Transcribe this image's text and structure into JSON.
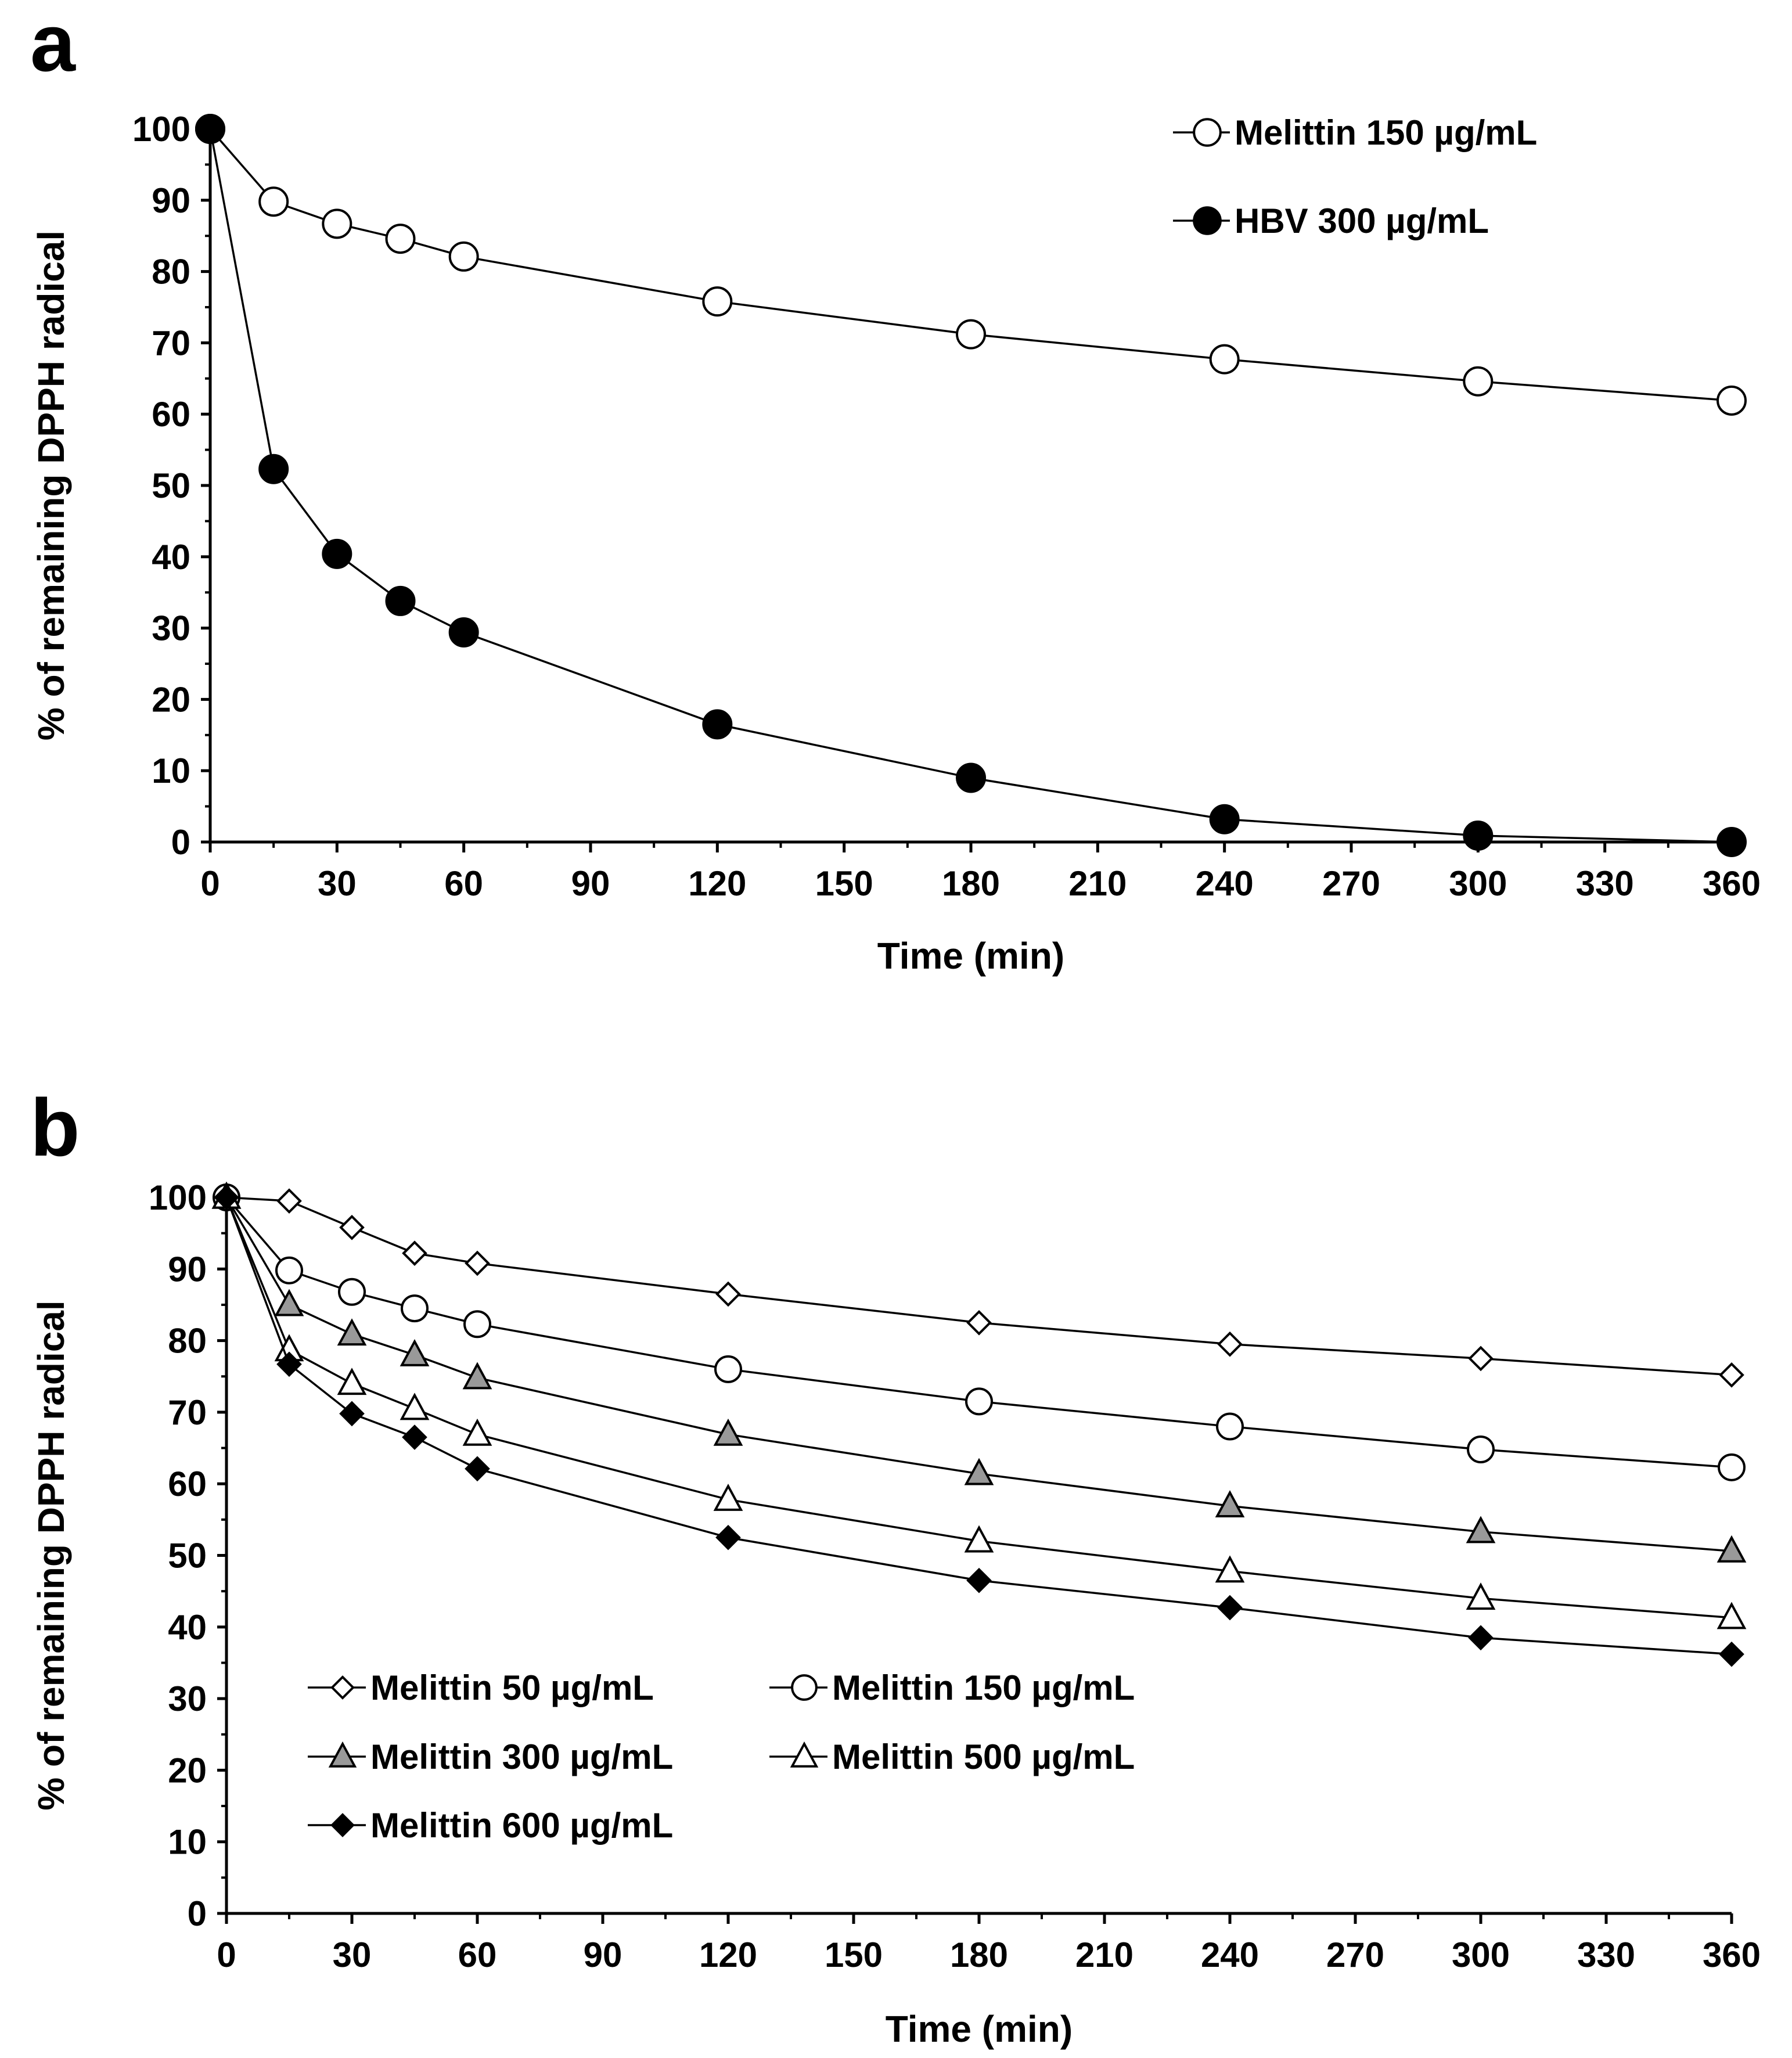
{
  "figure": {
    "panels": [
      "a",
      "b"
    ]
  },
  "chart_data": [
    {
      "panel_label": "a",
      "type": "line",
      "xlabel": "Time (min)",
      "ylabel": "% of remaining DPPH radical",
      "xlim": [
        0,
        360
      ],
      "ylim": [
        0,
        100
      ],
      "x_ticks": [
        "0",
        "30",
        "60",
        "90",
        "120",
        "150",
        "180",
        "210",
        "240",
        "270",
        "300",
        "330",
        "360"
      ],
      "y_ticks": [
        "0",
        "10",
        "20",
        "30",
        "40",
        "50",
        "60",
        "70",
        "80",
        "90",
        "100"
      ],
      "x": [
        0,
        15,
        30,
        45,
        60,
        120,
        180,
        240,
        300,
        360
      ],
      "grid": false,
      "legend_position": "top-right",
      "series": [
        {
          "name": "Melittin 150 µg/mL",
          "marker": "circle",
          "fill": "#ffffff",
          "values": [
            100,
            89.8,
            86.7,
            84.6,
            82.1,
            75.8,
            71.2,
            67.7,
            64.6,
            61.9
          ]
        },
        {
          "name": "HBV 300 µg/mL",
          "marker": "circle",
          "fill": "#000000",
          "values": [
            100,
            52.3,
            40.4,
            33.8,
            29.4,
            16.5,
            9.0,
            3.2,
            0.9,
            0.0
          ]
        }
      ]
    },
    {
      "panel_label": "b",
      "type": "line",
      "xlabel": "Time (min)",
      "ylabel": "% of remaining DPPH radical",
      "xlim": [
        0,
        360
      ],
      "ylim": [
        0,
        100
      ],
      "x_ticks": [
        "0",
        "30",
        "60",
        "90",
        "120",
        "150",
        "180",
        "210",
        "240",
        "270",
        "300",
        "330",
        "360"
      ],
      "y_ticks": [
        "0",
        "10",
        "20",
        "30",
        "40",
        "50",
        "60",
        "70",
        "80",
        "90",
        "100"
      ],
      "x": [
        0,
        15,
        30,
        45,
        60,
        120,
        180,
        240,
        300,
        360
      ],
      "grid": false,
      "legend_position": "bottom-left",
      "series": [
        {
          "name": "Melittin 50 µg/mL",
          "marker": "diamond",
          "fill": "#ffffff",
          "values": [
            100,
            99.5,
            95.8,
            92.2,
            90.8,
            86.5,
            82.5,
            79.5,
            77.5,
            75.2
          ]
        },
        {
          "name": "Melittin 150 µg/mL",
          "marker": "circle",
          "fill": "#ffffff",
          "values": [
            100,
            89.8,
            86.8,
            84.5,
            82.3,
            76.0,
            71.5,
            68.0,
            64.8,
            62.3
          ]
        },
        {
          "name": "Melittin 300 µg/mL",
          "marker": "triangle",
          "fill": "#999999",
          "values": [
            100,
            85.0,
            80.9,
            78.0,
            74.8,
            66.9,
            61.4,
            56.9,
            53.3,
            50.6
          ]
        },
        {
          "name": "Melittin 500 µg/mL",
          "marker": "triangle",
          "fill": "#ffffff",
          "values": [
            100,
            78.7,
            74.0,
            70.5,
            66.9,
            57.8,
            52.0,
            47.8,
            44.0,
            41.3
          ]
        },
        {
          "name": "Melittin 600 µg/mL",
          "marker": "diamond",
          "fill": "#000000",
          "values": [
            100,
            76.7,
            69.8,
            66.5,
            62.1,
            52.5,
            46.5,
            42.7,
            38.5,
            36.2
          ]
        }
      ]
    }
  ]
}
